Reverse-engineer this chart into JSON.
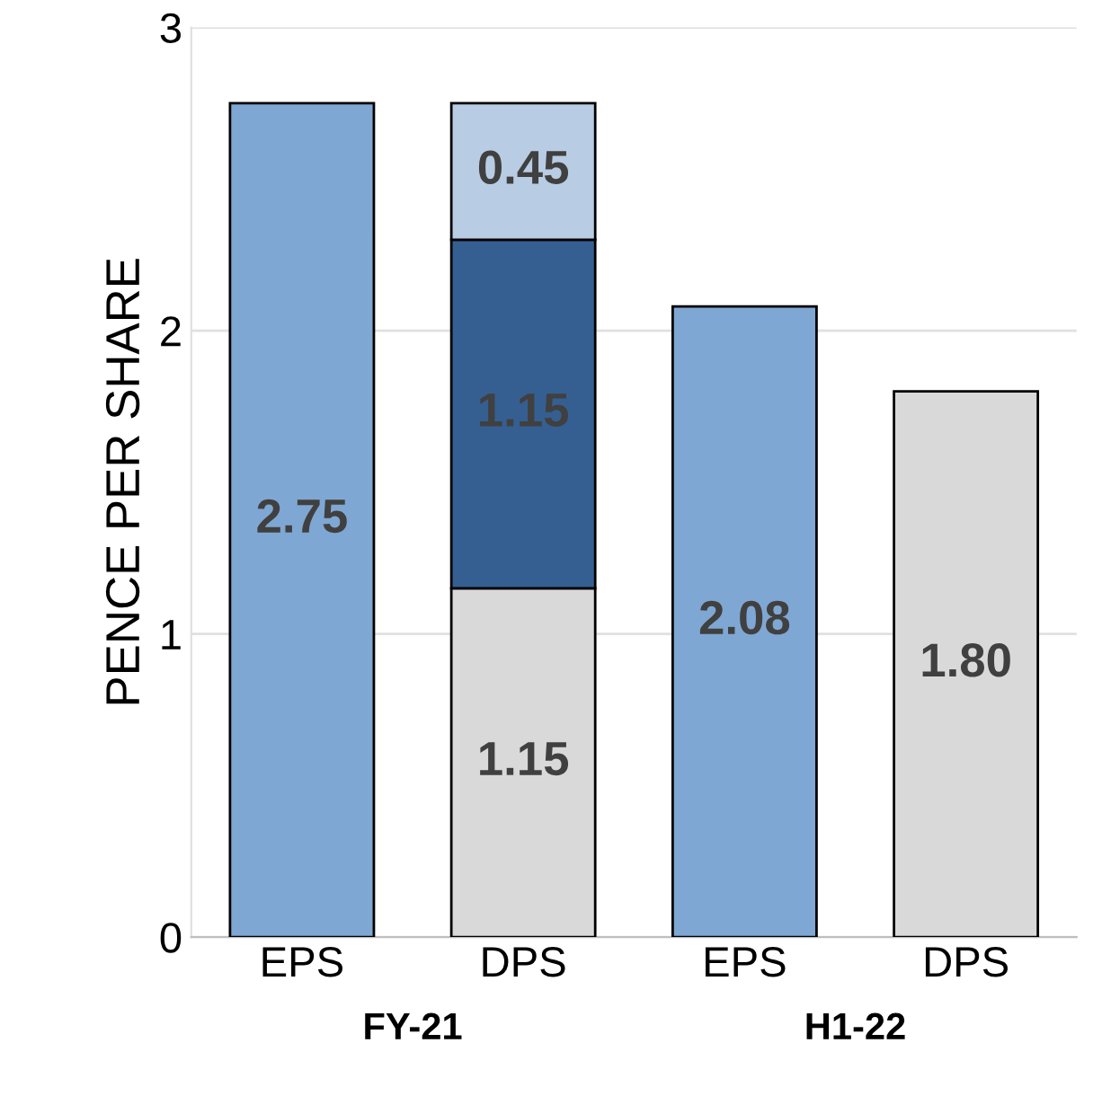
{
  "chart_data": {
    "type": "bar",
    "stacked": true,
    "ylabel": "PENCE PER SHARE",
    "categories": [
      "EPS",
      "DPS",
      "EPS",
      "DPS"
    ],
    "series": [
      {
        "colors": [
          "#7fa7d3",
          "#d9d9d9",
          "#7fa7d3",
          "#d9d9d9"
        ],
        "values": [
          2.75,
          1.15,
          2.08,
          1.8
        ],
        "value_labels": [
          "2.75",
          "1.15",
          "2.08",
          "1.80"
        ]
      },
      {
        "color": "#355f91",
        "values": [
          null,
          1.15,
          null,
          null
        ],
        "value_labels": [
          null,
          "1.15",
          null,
          null
        ]
      },
      {
        "color": "#b8cce4",
        "values": [
          null,
          0.45,
          null,
          null
        ],
        "value_labels": [
          null,
          "0.45",
          null,
          null
        ]
      }
    ],
    "annotations": [
      "FY-21",
      "H1-22"
    ],
    "ylim": [
      0,
      3
    ],
    "yticks": [
      0,
      1,
      2,
      3
    ],
    "grid": "y",
    "legend": false
  }
}
